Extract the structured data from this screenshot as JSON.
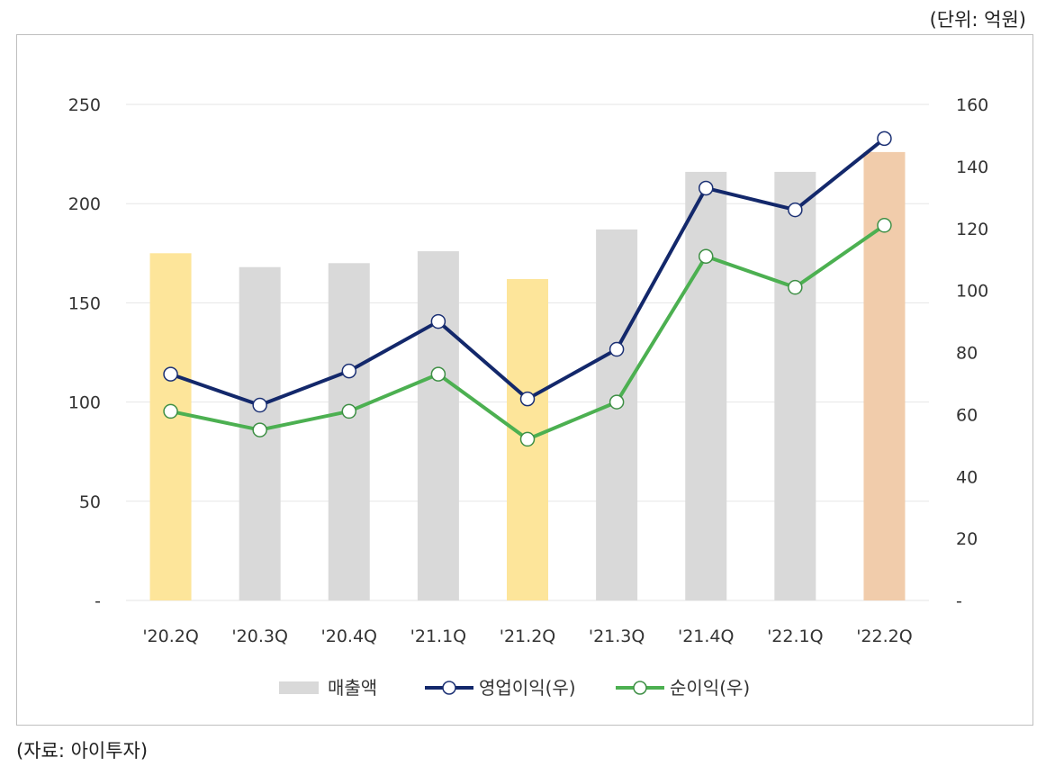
{
  "unit_label": "(단위: 억원)",
  "source_label": "(자료: 아이투자)",
  "colors": {
    "bar_default": "#d9d9d9",
    "bar_highlight_yellow": "#fde59a",
    "bar_highlight_orange": "#f1ccab",
    "operating_profit": "#13286b",
    "net_profit": "#4cb051",
    "grid": "#e6e6e6"
  },
  "chart_data": {
    "type": "bar",
    "categories": [
      "'20.2Q",
      "'20.3Q",
      "'20.4Q",
      "'21.1Q",
      "'21.2Q",
      "'21.3Q",
      "'21.4Q",
      "'22.1Q",
      "'22.2Q"
    ],
    "series": [
      {
        "name": "매출액",
        "type": "bar",
        "axis": "left",
        "values": [
          175,
          168,
          170,
          176,
          162,
          187,
          216,
          216,
          226
        ],
        "bar_colors": [
          "#fde59a",
          "#d9d9d9",
          "#d9d9d9",
          "#d9d9d9",
          "#fde59a",
          "#d9d9d9",
          "#d9d9d9",
          "#d9d9d9",
          "#f1ccab"
        ]
      },
      {
        "name": "영업이익(우)",
        "type": "line",
        "axis": "right",
        "values": [
          73,
          63,
          74,
          90,
          65,
          81,
          133,
          126,
          149
        ],
        "color": "#13286b"
      },
      {
        "name": "순이익(우)",
        "type": "line",
        "axis": "right",
        "values": [
          61,
          55,
          61,
          73,
          52,
          64,
          111,
          101,
          121
        ],
        "color": "#4cb051"
      }
    ],
    "y_left": {
      "min": 0,
      "max": 250,
      "ticks": [
        0,
        50,
        100,
        150,
        200,
        250
      ],
      "tick_labels": [
        "-",
        "50",
        "100",
        "150",
        "200",
        "250"
      ]
    },
    "y_right": {
      "min": 0,
      "max": 160,
      "ticks": [
        0,
        20,
        40,
        60,
        80,
        100,
        120,
        140,
        160
      ],
      "tick_labels": [
        "-",
        "20",
        "40",
        "60",
        "80",
        "100",
        "120",
        "140",
        "160"
      ]
    },
    "grid": true,
    "legend_position": "bottom"
  }
}
